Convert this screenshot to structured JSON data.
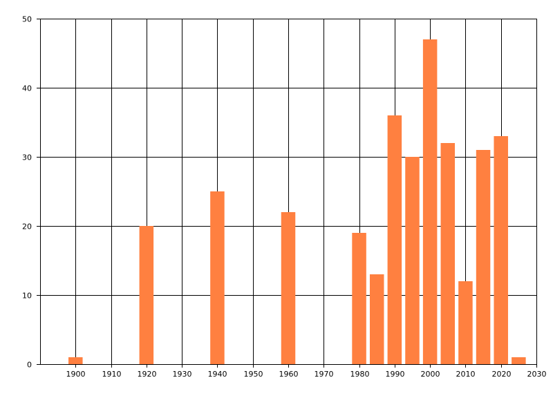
{
  "chart_data": {
    "type": "bar",
    "title": "",
    "xlabel": "",
    "ylabel": "",
    "x": [
      1900,
      1920,
      1940,
      1960,
      1980,
      1985,
      1990,
      1995,
      2000,
      2005,
      2010,
      2015,
      2020,
      2025
    ],
    "values": [
      1,
      20,
      25,
      22,
      19,
      13,
      36,
      30,
      47,
      32,
      12,
      31,
      33,
      1
    ],
    "xlim": [
      1890,
      2030
    ],
    "ylim": [
      0,
      50
    ],
    "x_ticks": [
      1900,
      1910,
      1920,
      1930,
      1940,
      1950,
      1960,
      1970,
      1980,
      1990,
      2000,
      2010,
      2020,
      2030
    ],
    "y_ticks": [
      0,
      10,
      20,
      30,
      40,
      50
    ],
    "bar_width_years": 4,
    "grid": true,
    "legend": "none",
    "colors": {
      "bar": "#ff8040",
      "grid": "#000000",
      "background": "#ffffff"
    }
  }
}
